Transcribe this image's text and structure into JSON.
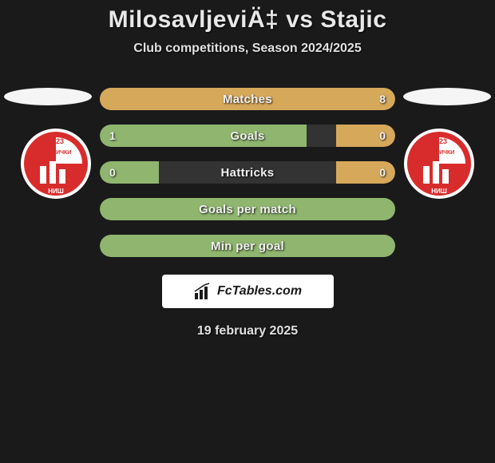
{
  "title": "MilosavljeviÄ‡ vs Stajic",
  "subtitle": "Club competitions, Season 2024/2025",
  "date": "19 february 2025",
  "brand": "FcTables.com",
  "colors": {
    "left_fill": "#8fb56f",
    "right_fill": "#d6a85a",
    "bg": "#1a1a1a",
    "oval": "#f5f5f5"
  },
  "club": {
    "year": "1923",
    "top_text": "РАДНИЧКИ",
    "bottom_text": "НИШ",
    "primary": "#d82c2c",
    "secondary": "#ffffff"
  },
  "stats": [
    {
      "label": "Matches",
      "left_val": "",
      "right_val": "8",
      "left_width": 0,
      "right_width": 100
    },
    {
      "label": "Goals",
      "left_val": "1",
      "right_val": "0",
      "left_width": 70,
      "right_width": 20
    },
    {
      "label": "Hattricks",
      "left_val": "0",
      "right_val": "0",
      "left_width": 20,
      "right_width": 20
    },
    {
      "label": "Goals per match",
      "left_val": "",
      "right_val": "",
      "left_width": 100,
      "right_width": 0
    },
    {
      "label": "Min per goal",
      "left_val": "",
      "right_val": "",
      "left_width": 100,
      "right_width": 0
    }
  ]
}
